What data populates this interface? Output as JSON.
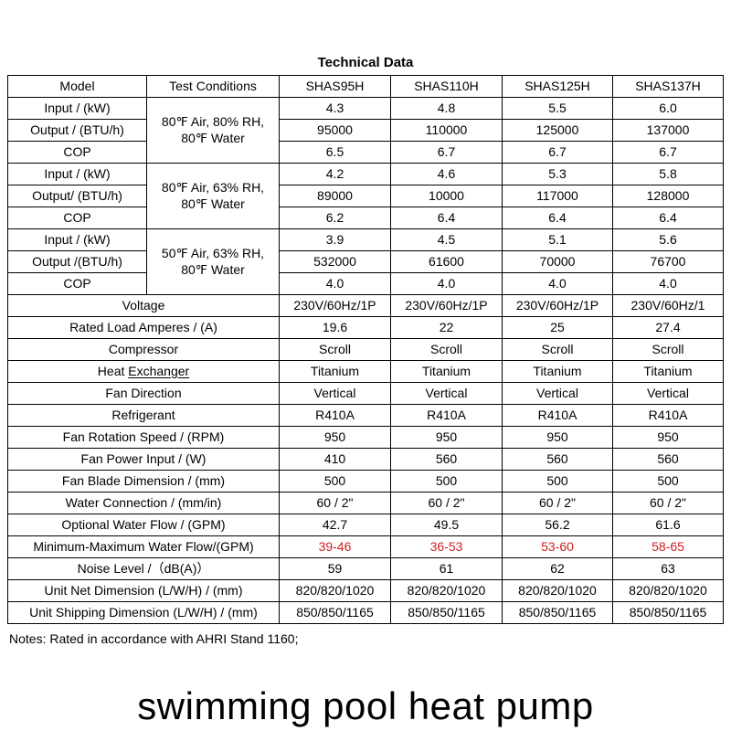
{
  "title": "Technical Data",
  "notes": "Notes: Rated in accordance with AHRI Stand 1160;",
  "caption": "swimming pool heat pump",
  "colors": {
    "highlight_red": "#cc2222",
    "table_border": "#000000",
    "text": "#000000",
    "background": "#ffffff"
  },
  "table": {
    "header": [
      "Model",
      "Test Conditions",
      "SHAS95H",
      "SHAS110H",
      "SHAS125H",
      "SHAS137H"
    ],
    "groups": [
      {
        "condition_lines": [
          "80℉ Air, 80% RH,",
          "80℉ Water"
        ],
        "rows": [
          {
            "label": "Input / (kW)",
            "values": [
              "4.3",
              "4.8",
              "5.5",
              "6.0"
            ]
          },
          {
            "label": "Output / (BTU/h)",
            "values": [
              "95000",
              "110000",
              "125000",
              "137000"
            ]
          },
          {
            "label": "COP",
            "values": [
              "6.5",
              "6.7",
              "6.7",
              "6.7"
            ]
          }
        ]
      },
      {
        "condition_lines": [
          "80℉ Air, 63% RH,",
          "80℉ Water"
        ],
        "rows": [
          {
            "label": "Input / (kW)",
            "values": [
              "4.2",
              "4.6",
              "5.3",
              "5.8"
            ]
          },
          {
            "label": "Output/ (BTU/h)",
            "values": [
              "89000",
              "10000",
              "117000",
              "128000"
            ]
          },
          {
            "label": "COP",
            "values": [
              "6.2",
              "6.4",
              "6.4",
              "6.4"
            ]
          }
        ]
      },
      {
        "condition_lines": [
          "50℉ Air, 63% RH,",
          "80℉ Water"
        ],
        "rows": [
          {
            "label": "Input / (kW)",
            "values": [
              "3.9",
              "4.5",
              "5.1",
              "5.6"
            ]
          },
          {
            "label": "Output /(BTU/h)",
            "values": [
              "532000",
              "61600",
              "70000",
              "76700"
            ]
          },
          {
            "label": "COP",
            "values": [
              "4.0",
              "4.0",
              "4.0",
              "4.0"
            ]
          }
        ]
      }
    ],
    "spec_rows": [
      {
        "label": "Voltage",
        "values": [
          "230V/60Hz/1P",
          "230V/60Hz/1P",
          "230V/60Hz/1P",
          "230V/60Hz/1"
        ]
      },
      {
        "label": "Rated Load Amperes / (A)",
        "values": [
          "19.6",
          "22",
          "25",
          "27.4"
        ]
      },
      {
        "label": "Compressor",
        "values": [
          "Scroll",
          "Scroll",
          "Scroll",
          "Scroll"
        ]
      },
      {
        "label_pre": "Heat ",
        "label_underline": "Exchanger",
        "values": [
          "Titanium",
          "Titanium",
          "Titanium",
          "Titanium"
        ]
      },
      {
        "label": "Fan Direction",
        "values": [
          "Vertical",
          "Vertical",
          "Vertical",
          "Vertical"
        ]
      },
      {
        "label": "Refrigerant",
        "values": [
          "R410A",
          "R410A",
          "R410A",
          "R410A"
        ]
      },
      {
        "label": "Fan Rotation Speed / (RPM)",
        "values": [
          "950",
          "950",
          "950",
          "950"
        ]
      },
      {
        "label": "Fan Power Input / (W)",
        "values": [
          "410",
          "560",
          "560",
          "560"
        ]
      },
      {
        "label": "Fan Blade Dimension / (mm)",
        "values": [
          "500",
          "500",
          "500",
          "500"
        ]
      },
      {
        "label": "Water Connection / (mm/in)",
        "values": [
          "60 / 2\"",
          "60 / 2\"",
          "60 / 2\"",
          "60 / 2\""
        ]
      },
      {
        "label": "Optional Water Flow / (GPM)",
        "values": [
          "42.7",
          "49.5",
          "56.2",
          "61.6"
        ]
      },
      {
        "label": "Minimum-Maximum Water Flow/(GPM)",
        "values": [
          "39-46",
          "36-53",
          "53-60",
          "58-65"
        ],
        "red": true
      },
      {
        "label": "Noise Level /（dB(A)）",
        "values": [
          "59",
          "61",
          "62",
          "63"
        ]
      },
      {
        "label": "Unit Net Dimension (L/W/H) / (mm)",
        "values": [
          "820/820/1020",
          "820/820/1020",
          "820/820/1020",
          "820/820/1020"
        ]
      },
      {
        "label": "Unit Shipping Dimension (L/W/H) / (mm)",
        "values": [
          "850/850/1165",
          "850/850/1165",
          "850/850/1165",
          "850/850/1165"
        ]
      }
    ]
  }
}
